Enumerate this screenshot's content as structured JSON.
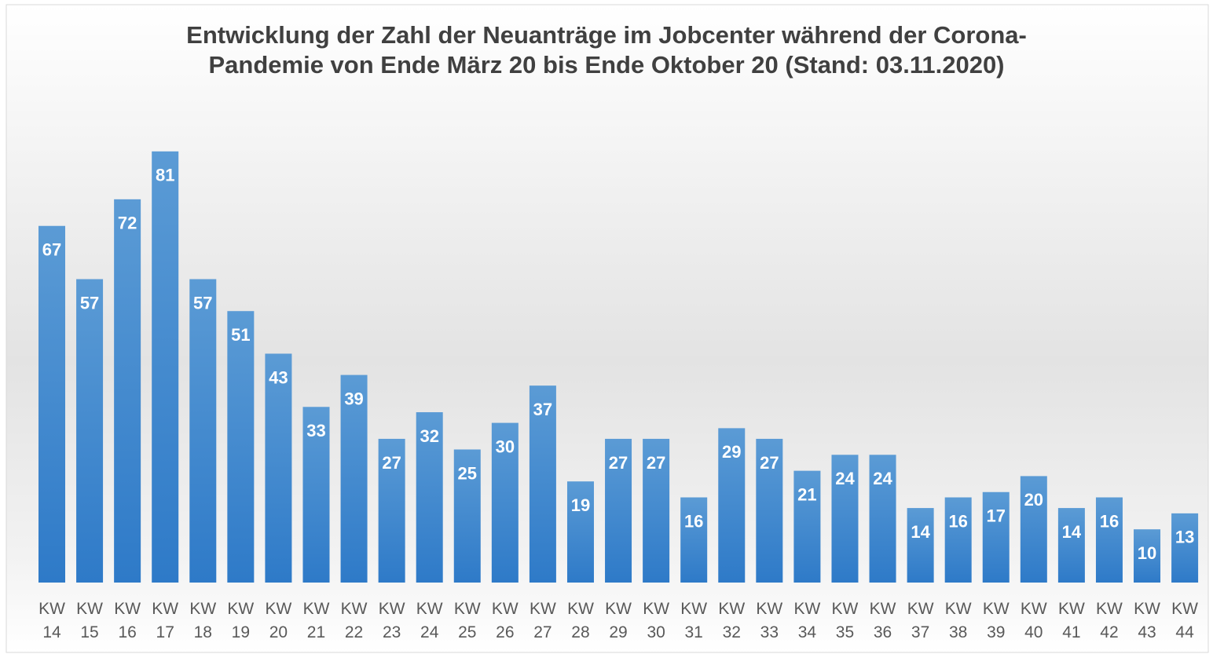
{
  "chart_data": {
    "type": "bar",
    "title": "Entwicklung der Zahl der Neuanträge im Jobcenter während der Corona-\nPandemie von Ende März 20 bis Ende Oktober 20 (Stand: 03.11.2020)",
    "categories": [
      "KW 14",
      "KW 15",
      "KW 16",
      "KW 17",
      "KW 18",
      "KW 19",
      "KW 20",
      "KW 21",
      "KW 22",
      "KW 23",
      "KW 24",
      "KW 25",
      "KW 26",
      "KW 27",
      "KW 28",
      "KW 29",
      "KW 30",
      "KW 31",
      "KW 32",
      "KW 33",
      "KW 34",
      "KW 35",
      "KW 36",
      "KW 37",
      "KW 38",
      "KW 39",
      "KW 40",
      "KW 41",
      "KW 42",
      "KW 43",
      "KW 44"
    ],
    "values": [
      67,
      57,
      72,
      81,
      57,
      51,
      43,
      33,
      39,
      27,
      32,
      25,
      30,
      37,
      19,
      27,
      27,
      16,
      29,
      27,
      21,
      24,
      24,
      14,
      16,
      17,
      20,
      14,
      16,
      10,
      13
    ],
    "color": "#3f86cf"
  }
}
